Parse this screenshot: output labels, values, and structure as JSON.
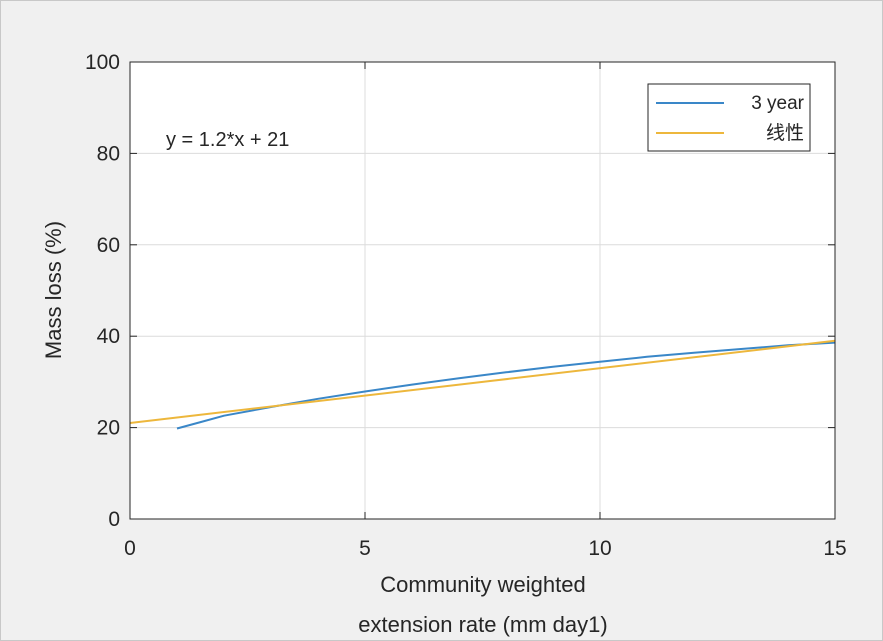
{
  "chart_data": {
    "type": "line",
    "title": "",
    "xlabel_line1": "Community weighted",
    "xlabel_line2": "extension rate (mm day1)",
    "ylabel": "Mass loss (%)",
    "xlim": [
      0,
      15
    ],
    "ylim": [
      0,
      100
    ],
    "xticks": [
      0,
      5,
      10,
      15
    ],
    "yticks": [
      0,
      20,
      40,
      60,
      80,
      100
    ],
    "xtick_labels": [
      "0",
      "5",
      "10",
      "15"
    ],
    "ytick_labels": [
      "0",
      "20",
      "40",
      "60",
      "80",
      "100"
    ],
    "grid": true,
    "legend_position": "top-right",
    "annotation": "y = 1.2*x + 21",
    "series": [
      {
        "name": "3 year",
        "color": "#3a87c8",
        "x": [
          1,
          1.5,
          2,
          3,
          4,
          5,
          6,
          7,
          8,
          9,
          10,
          11,
          12,
          13,
          14,
          15
        ],
        "y": [
          19.8,
          21.2,
          22.6,
          24.5,
          26.3,
          27.9,
          29.4,
          30.8,
          32.1,
          33.3,
          34.4,
          35.5,
          36.4,
          37.2,
          38.0,
          38.6
        ]
      },
      {
        "name": "线性",
        "color": "#edb73c",
        "x": [
          0,
          15
        ],
        "y": [
          21,
          39
        ]
      }
    ]
  }
}
